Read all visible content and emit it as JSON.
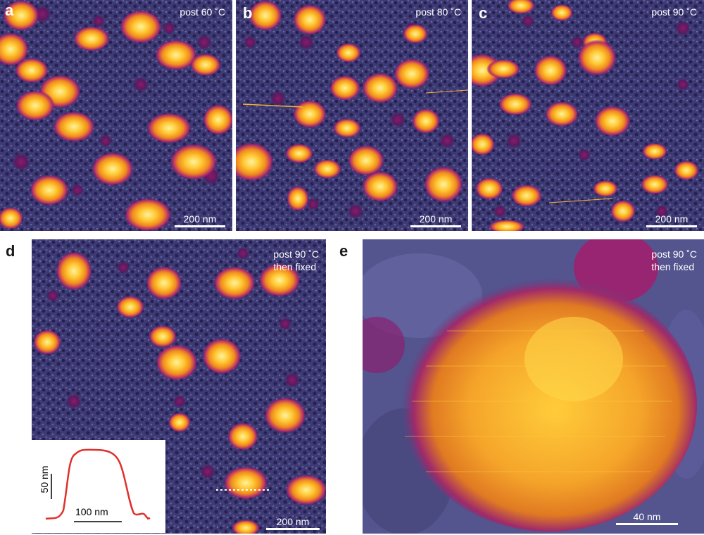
{
  "panels": {
    "a": {
      "label": "a",
      "condition": "post 60 ˚C",
      "scale": "200 nm"
    },
    "b": {
      "label": "b",
      "condition": "post 80 ˚C",
      "scale": "200 nm"
    },
    "c": {
      "label": "c",
      "condition": "post 90 ˚C",
      "scale": "200 nm"
    },
    "d": {
      "label": "d",
      "condition_line1": "post 90 ˚C",
      "condition_line2": "then fixed",
      "scale": "200 nm",
      "inset": {
        "x_scale": "100 nm",
        "y_scale": "50 nm",
        "profile_color": "#e0302a"
      }
    },
    "e": {
      "label": "e",
      "condition_line1": "post 90 ˚C",
      "condition_line2": "then fixed",
      "scale": "40 nm"
    }
  },
  "colors": {
    "background": "#3c3870",
    "particle_core": "#ffd23a",
    "particle_edge": "#a0206e"
  }
}
